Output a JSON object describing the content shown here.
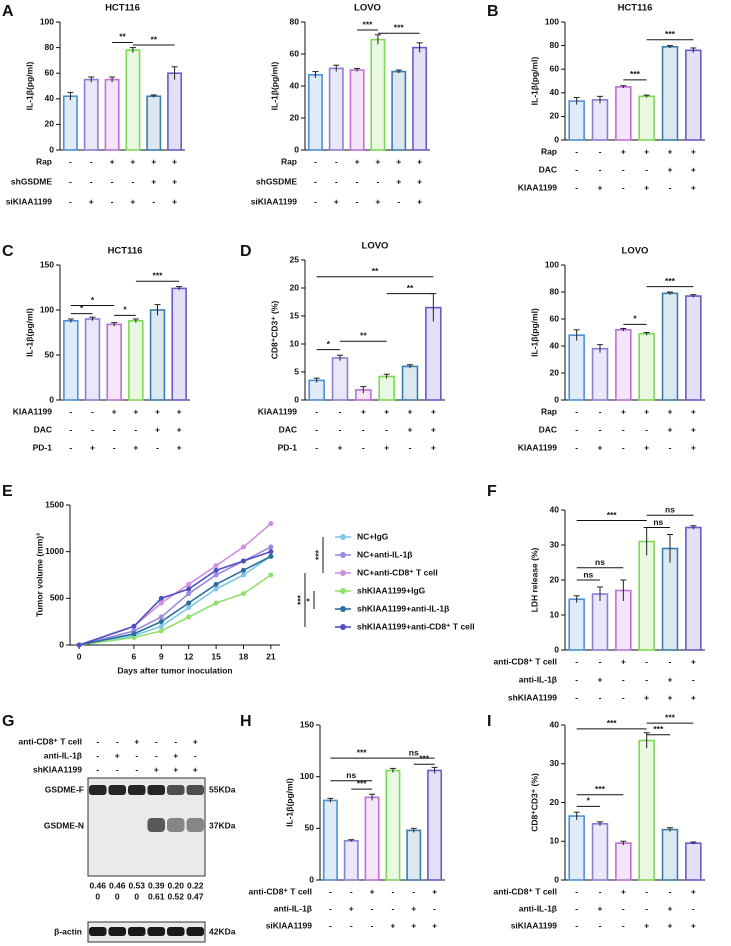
{
  "chart_data": [
    {
      "type": "bar",
      "panel": "A",
      "title": "HCT116",
      "y_label": "IL-1β(pg/ml)",
      "ylim": [
        0,
        100
      ],
      "yticks": [
        0,
        20,
        40,
        60,
        80,
        100
      ],
      "values": [
        42,
        55,
        55,
        78,
        42,
        60
      ],
      "errors": [
        3,
        2,
        2,
        2,
        1,
        5
      ],
      "colors": [
        "#4f8fd6",
        "#8a7fd6",
        "#c070d8",
        "#7ed957",
        "#3c7ea8",
        "#6a5acd"
      ],
      "conditions": [
        {
          "name": "Rap",
          "marks": [
            "-",
            "-",
            "+",
            "+",
            "+",
            "+"
          ]
        },
        {
          "name": "shGSDME",
          "marks": [
            "-",
            "-",
            "-",
            "-",
            "+",
            "+"
          ]
        },
        {
          "name": "siKIAA1199",
          "marks": [
            "-",
            "+",
            "-",
            "+",
            "-",
            "+"
          ]
        }
      ],
      "significance": [
        {
          "from": 2,
          "to": 3,
          "y": 84,
          "label": "**"
        },
        {
          "from": 3,
          "to": 5,
          "y": 82,
          "label": "**"
        }
      ]
    },
    {
      "type": "bar",
      "title": "LOVO",
      "y_label": "IL-1β(pg/ml)",
      "ylim": [
        0,
        80
      ],
      "yticks": [
        0,
        20,
        40,
        60,
        80
      ],
      "values": [
        47,
        51,
        50,
        69,
        49,
        64
      ],
      "errors": [
        2,
        2,
        1,
        3,
        1,
        3
      ],
      "colors": [
        "#4f8fd6",
        "#8a7fd6",
        "#c070d8",
        "#7ed957",
        "#3c7ea8",
        "#6a5acd"
      ],
      "conditions": [
        {
          "name": "Rap",
          "marks": [
            "-",
            "-",
            "+",
            "+",
            "+",
            "+"
          ]
        },
        {
          "name": "shGSDME",
          "marks": [
            "-",
            "-",
            "-",
            "-",
            "+",
            "+"
          ]
        },
        {
          "name": "siKIAA1199",
          "marks": [
            "-",
            "+",
            "-",
            "+",
            "-",
            "+"
          ]
        }
      ],
      "significance": [
        {
          "from": 2,
          "to": 3,
          "y": 75,
          "label": "***"
        },
        {
          "from": 3,
          "to": 5,
          "y": 73,
          "label": "***"
        }
      ]
    },
    {
      "type": "bar",
      "panel": "B",
      "title": "HCT116",
      "y_label": "IL-1β(pg/ml)",
      "ylim": [
        0,
        100
      ],
      "yticks": [
        0,
        20,
        40,
        60,
        80,
        100
      ],
      "values": [
        33,
        34,
        45,
        37,
        79,
        76
      ],
      "errors": [
        3,
        3,
        1,
        1,
        1,
        2
      ],
      "colors": [
        "#4f8fd6",
        "#8a7fd6",
        "#c070d8",
        "#7ed957",
        "#3c7ea8",
        "#6a5acd"
      ],
      "conditions": [
        {
          "name": "Rap",
          "marks": [
            "-",
            "-",
            "+",
            "+",
            "+",
            "+"
          ]
        },
        {
          "name": "DAC",
          "marks": [
            "-",
            "-",
            "-",
            "-",
            "+",
            "+"
          ]
        },
        {
          "name": "KIAA1199",
          "marks": [
            "-",
            "+",
            "-",
            "+",
            "-",
            "+"
          ]
        }
      ],
      "significance": [
        {
          "from": 2,
          "to": 3,
          "y": 51,
          "label": "***"
        },
        {
          "from": 3,
          "to": 5,
          "y": 85,
          "label": "***"
        }
      ]
    },
    {
      "type": "bar",
      "panel": "C",
      "title": "HCT116",
      "y_label": "IL-1β(pg/ml)",
      "ylim": [
        0,
        150
      ],
      "yticks": [
        0,
        50,
        100,
        150
      ],
      "values": [
        88,
        90,
        84,
        88,
        100,
        124
      ],
      "errors": [
        2,
        2,
        2,
        2,
        6,
        2
      ],
      "colors": [
        "#4f8fd6",
        "#8a7fd6",
        "#c070d8",
        "#7ed957",
        "#3c7ea8",
        "#6a5acd"
      ],
      "conditions": [
        {
          "name": "KIAA1199",
          "marks": [
            "-",
            "-",
            "+",
            "+",
            "+",
            "+"
          ]
        },
        {
          "name": "DAC",
          "marks": [
            "-",
            "-",
            "-",
            "-",
            "+",
            "+"
          ]
        },
        {
          "name": "PD-1",
          "marks": [
            "-",
            "+",
            "-",
            "+",
            "-",
            "+"
          ]
        }
      ],
      "significance": [
        {
          "from": 0,
          "to": 2,
          "y": 105,
          "label": "*"
        },
        {
          "from": 0,
          "to": 1,
          "y": 96,
          "label": "*"
        },
        {
          "from": 2,
          "to": 3,
          "y": 94,
          "label": "*"
        },
        {
          "from": 3,
          "to": 5,
          "y": 132,
          "label": "***"
        }
      ]
    },
    {
      "type": "bar",
      "panel": "D",
      "title": "LOVO",
      "y_label": "CD8⁺CD3⁺ (%)",
      "ylim": [
        0,
        25
      ],
      "yticks": [
        0,
        5,
        10,
        15,
        20,
        25
      ],
      "values": [
        3.5,
        7.5,
        1.8,
        4.2,
        6,
        16.5
      ],
      "errors": [
        0.4,
        0.5,
        0.6,
        0.4,
        0.3,
        2.5
      ],
      "colors": [
        "#4f8fd6",
        "#8a7fd6",
        "#c070d8",
        "#7ed957",
        "#3c7ea8",
        "#6a5acd"
      ],
      "conditions": [
        {
          "name": "KIAA1199",
          "marks": [
            "-",
            "-",
            "+",
            "+",
            "+",
            "+"
          ]
        },
        {
          "name": "DAC",
          "marks": [
            "-",
            "-",
            "-",
            "-",
            "+",
            "+"
          ]
        },
        {
          "name": "PD-1",
          "marks": [
            "-",
            "+",
            "-",
            "+",
            "-",
            "+"
          ]
        }
      ],
      "significance": [
        {
          "from": 0,
          "to": 1,
          "y": 9,
          "label": "*"
        },
        {
          "from": 1,
          "to": 3,
          "y": 10.5,
          "label": "**"
        },
        {
          "from": 0,
          "to": 5,
          "y": 22,
          "label": "**"
        },
        {
          "from": 3,
          "to": 5,
          "y": 19,
          "label": "**"
        }
      ]
    },
    {
      "type": "bar",
      "title": "LOVO",
      "y_label": "IL-1β(pg/ml)",
      "ylim": [
        0,
        100
      ],
      "yticks": [
        0,
        20,
        40,
        60,
        80,
        100
      ],
      "values": [
        48,
        38,
        52,
        49,
        79,
        77
      ],
      "errors": [
        4,
        3,
        1,
        1,
        1,
        1
      ],
      "colors": [
        "#4f8fd6",
        "#8a7fd6",
        "#c070d8",
        "#7ed957",
        "#3c7ea8",
        "#6a5acd"
      ],
      "conditions": [
        {
          "name": "Rap",
          "marks": [
            "-",
            "-",
            "+",
            "+",
            "+",
            "+"
          ]
        },
        {
          "name": "DAC",
          "marks": [
            "-",
            "-",
            "-",
            "-",
            "+",
            "+"
          ]
        },
        {
          "name": "KIAA1199",
          "marks": [
            "-",
            "+",
            "-",
            "+",
            "-",
            "+"
          ]
        }
      ],
      "significance": [
        {
          "from": 2,
          "to": 3,
          "y": 56,
          "label": "*"
        },
        {
          "from": 3,
          "to": 5,
          "y": 84,
          "label": "***"
        }
      ]
    },
    {
      "type": "line",
      "panel": "E",
      "x_label": "Days  after tumor inoculation",
      "y_label": "Tumor volume (mm)³",
      "x": [
        0,
        6,
        9,
        12,
        15,
        18,
        21
      ],
      "xlim": [
        -1,
        22
      ],
      "xticks": [
        0,
        6,
        9,
        12,
        15,
        18,
        21
      ],
      "ylim": [
        0,
        1500
      ],
      "yticks": [
        0,
        500,
        1000,
        1500
      ],
      "series": [
        {
          "name": "NC+IgG",
          "color": "#7ec8e3",
          "values": [
            0,
            100,
            200,
            400,
            600,
            750,
            950
          ]
        },
        {
          "name": "NC+anti-IL-1β",
          "color": "#9a8ae0",
          "values": [
            0,
            150,
            300,
            550,
            750,
            900,
            1050
          ]
        },
        {
          "name": "NC+anti-CD8⁺ T cell",
          "color": "#d090e0",
          "values": [
            0,
            200,
            450,
            650,
            850,
            1050,
            1300
          ]
        },
        {
          "name": "shKIAA1199+IgG",
          "color": "#90e070",
          "values": [
            0,
            80,
            150,
            300,
            450,
            550,
            750
          ]
        },
        {
          "name": "shKIAA1199+anti-IL-1β",
          "color": "#2a6fa0",
          "values": [
            0,
            120,
            250,
            450,
            650,
            800,
            950
          ]
        },
        {
          "name": "shKIAA1199+anti-CD8⁺ T cell",
          "color": "#5050c0",
          "values": [
            0,
            200,
            500,
            600,
            800,
            900,
            1000
          ]
        }
      ],
      "legend_brackets": [
        {
          "from": 0,
          "to": 2,
          "label": "***"
        },
        {
          "from": 3,
          "to": 4,
          "label": "*"
        },
        {
          "from": 2,
          "to": 5,
          "label": "***"
        }
      ]
    },
    {
      "type": "bar",
      "panel": "F",
      "y_label": "LDH release (%)",
      "ylim": [
        0,
        40
      ],
      "yticks": [
        0,
        10,
        20,
        30,
        40
      ],
      "values": [
        14.5,
        16,
        17,
        31,
        29,
        35
      ],
      "errors": [
        1,
        2,
        3,
        4,
        4,
        0.5
      ],
      "colors": [
        "#4f8fd6",
        "#8a7fd6",
        "#c070d8",
        "#7ed957",
        "#3c7ea8",
        "#6a5acd"
      ],
      "conditions": [
        {
          "name": "anti-CD8⁺ T cell",
          "marks": [
            "-",
            "-",
            "+",
            "-",
            "-",
            "+"
          ]
        },
        {
          "name": "anti-IL-1β",
          "marks": [
            "-",
            "+",
            "-",
            "-",
            "+",
            "-"
          ]
        },
        {
          "name": "shKIAA1199",
          "marks": [
            "-",
            "-",
            "-",
            "+",
            "+",
            "+"
          ]
        }
      ],
      "significance": [
        {
          "from": 0,
          "to": 1,
          "y": 20,
          "label": "ns"
        },
        {
          "from": 0,
          "to": 2,
          "y": 23.5,
          "label": "ns"
        },
        {
          "from": 0,
          "to": 3,
          "y": 37,
          "label": "***"
        },
        {
          "from": 3,
          "to": 4,
          "y": 35,
          "label": "ns"
        },
        {
          "from": 3,
          "to": 5,
          "y": 38.5,
          "label": "ns"
        }
      ]
    },
    {
      "type": "bar",
      "panel": "H",
      "y_label": "IL-1β(pg/ml)",
      "ylim": [
        0,
        150
      ],
      "yticks": [
        0,
        50,
        100,
        150
      ],
      "values": [
        77,
        38,
        80,
        106,
        48,
        106
      ],
      "errors": [
        2,
        1,
        3,
        2,
        2,
        3
      ],
      "colors": [
        "#4f8fd6",
        "#8a7fd6",
        "#c070d8",
        "#7ed957",
        "#3c7ea8",
        "#6a5acd"
      ],
      "conditions": [
        {
          "name": "anti-CD8⁺ T cell",
          "marks": [
            "-",
            "-",
            "+",
            "-",
            "-",
            "+"
          ]
        },
        {
          "name": "anti-IL-1β",
          "marks": [
            "-",
            "+",
            "-",
            "-",
            "+",
            "-"
          ]
        },
        {
          "name": "siKIAA1199",
          "marks": [
            "-",
            "-",
            "-",
            "+",
            "+",
            "+"
          ]
        }
      ],
      "significance": [
        {
          "from": 0,
          "to": 2,
          "y": 96,
          "label": "ns"
        },
        {
          "from": 1,
          "to": 2,
          "y": 88,
          "label": "***"
        },
        {
          "from": 0,
          "to": 3,
          "y": 118,
          "label": "***"
        },
        {
          "from": 3,
          "to": 5,
          "y": 118,
          "label": "ns"
        },
        {
          "from": 4,
          "to": 5,
          "y": 112,
          "label": "***"
        }
      ]
    },
    {
      "type": "bar",
      "panel": "I",
      "y_label": "CD8⁺CD3⁺ (%)",
      "ylim": [
        0,
        40
      ],
      "yticks": [
        0,
        10,
        20,
        30,
        40
      ],
      "values": [
        16.5,
        14.5,
        9.5,
        36,
        13,
        9.5
      ],
      "errors": [
        1,
        0.5,
        0.5,
        2,
        0.5,
        0.3
      ],
      "colors": [
        "#4f8fd6",
        "#8a7fd6",
        "#c070d8",
        "#7ed957",
        "#3c7ea8",
        "#6a5acd"
      ],
      "conditions": [
        {
          "name": "anti-CD8⁺ T cell",
          "marks": [
            "-",
            "-",
            "+",
            "-",
            "-",
            "+"
          ]
        },
        {
          "name": "anti-IL-1β",
          "marks": [
            "-",
            "+",
            "-",
            "-",
            "+",
            "-"
          ]
        },
        {
          "name": "siKIAA1199",
          "marks": [
            "-",
            "-",
            "-",
            "+",
            "+",
            "+"
          ]
        }
      ],
      "significance": [
        {
          "from": 0,
          "to": 1,
          "y": 19,
          "label": "*"
        },
        {
          "from": 0,
          "to": 2,
          "y": 22,
          "label": "***"
        },
        {
          "from": 0,
          "to": 3,
          "y": 39,
          "label": "***"
        },
        {
          "from": 3,
          "to": 4,
          "y": 37.5,
          "label": "***"
        },
        {
          "from": 3,
          "to": 5,
          "y": 40.5,
          "label": "***"
        }
      ]
    }
  ],
  "blot": {
    "panel": "G",
    "conditions": [
      {
        "name": "anti-CD8⁺ T cell",
        "marks": [
          "-",
          "-",
          "+",
          "-",
          "-",
          "+"
        ]
      },
      {
        "name": "anti-IL-1β",
        "marks": [
          "-",
          "+",
          "-",
          "-",
          "+",
          "-"
        ]
      },
      {
        "name": "shKIAA1199",
        "marks": [
          "-",
          "-",
          "-",
          "+",
          "+",
          "+"
        ]
      }
    ],
    "bands": [
      {
        "name": "GSDME-F",
        "size": "55KDa"
      },
      {
        "name": "GSDME-N",
        "size": "37KDa"
      },
      {
        "name": "β-actin",
        "size": "42KDa"
      }
    ],
    "quantification": [
      [
        "0.46",
        "0.46",
        "0.53",
        "0.39",
        "0.20",
        "0.22"
      ],
      [
        "0",
        "0",
        "0",
        "0.61",
        "0.52",
        "0.47"
      ]
    ]
  }
}
